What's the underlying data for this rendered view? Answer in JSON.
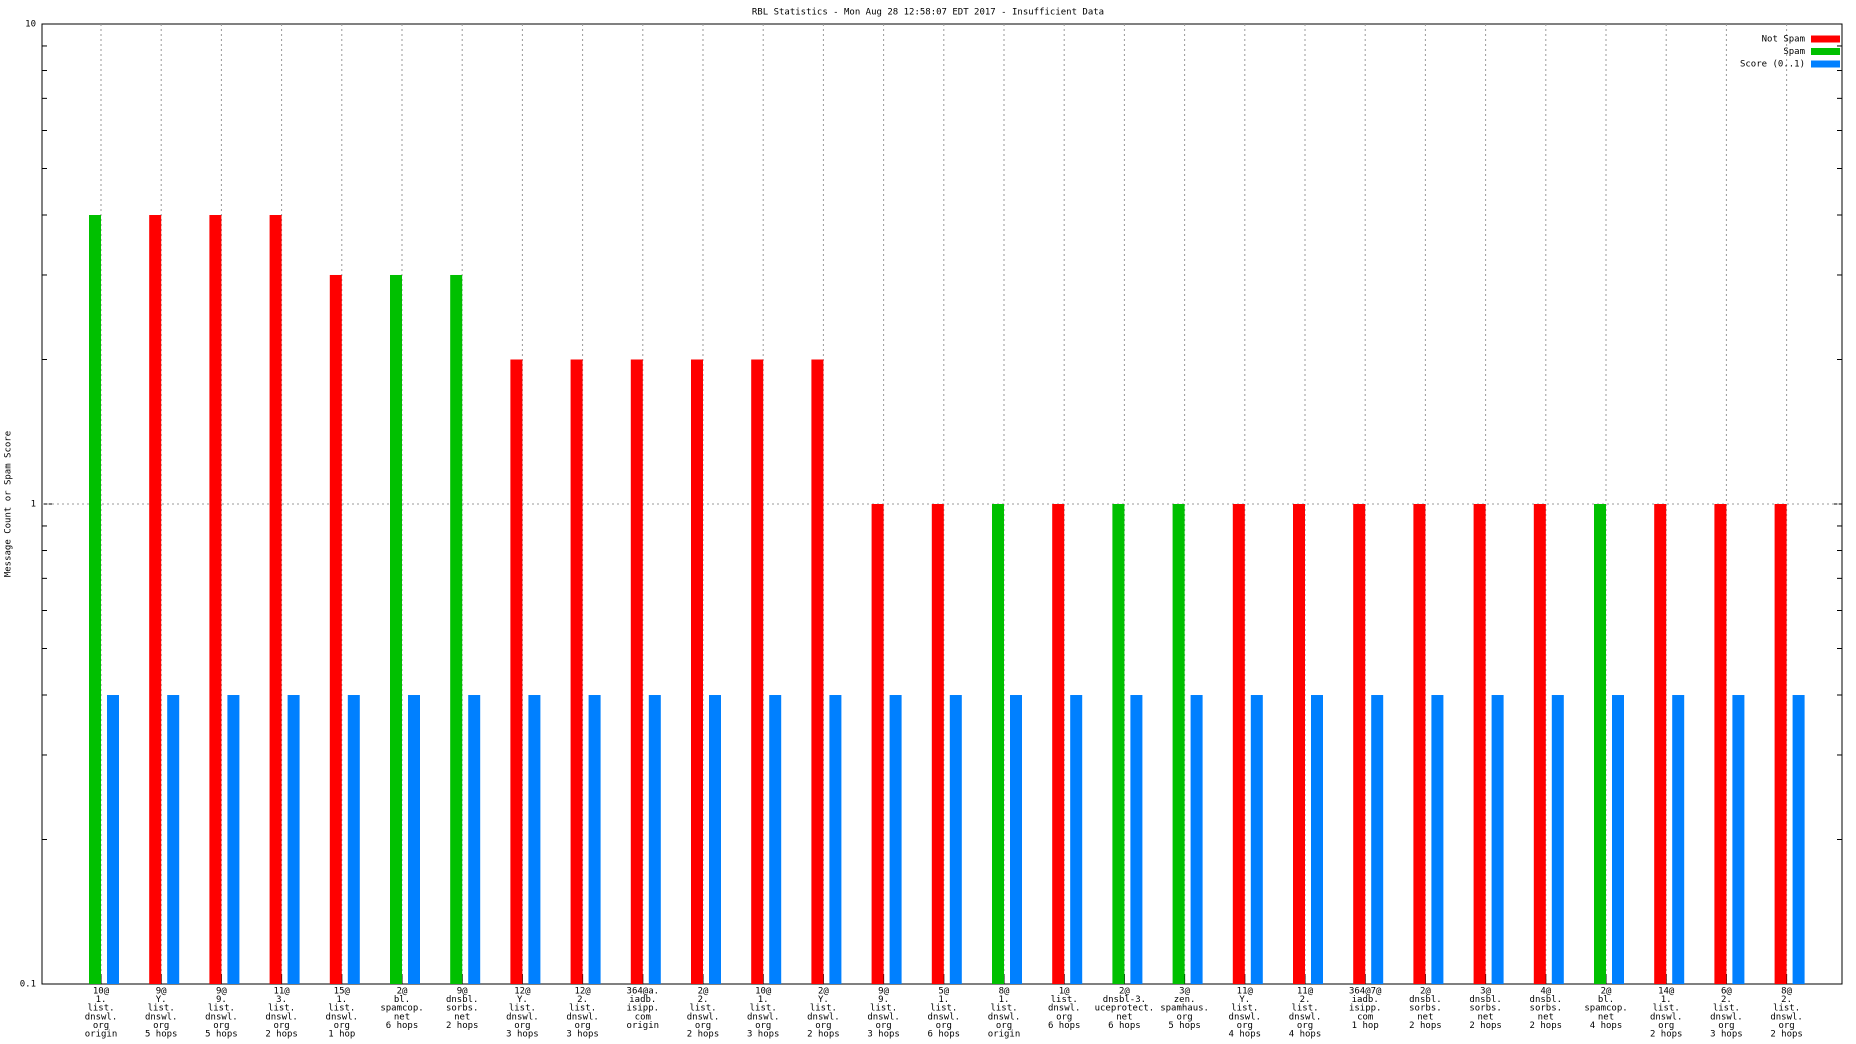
{
  "chart_data": {
    "type": "bar",
    "title": "RBL Statistics - Mon Aug 28 12:58:07 EDT 2017 - Insufficient Data",
    "y_label": "Message Count or Spam Score",
    "categories": [
      [
        "10@",
        "1.",
        "list.",
        "dnswl.",
        "org",
        "origin"
      ],
      [
        "9@",
        "Y.",
        "list.",
        "dnswl.",
        "org",
        "5 hops"
      ],
      [
        "9@",
        "9.",
        "list.",
        "dnswl.",
        "org",
        "5 hops"
      ],
      [
        "11@",
        "3.",
        "list.",
        "dnswl.",
        "org",
        "2 hops"
      ],
      [
        "15@",
        "1.",
        "list.",
        "dnswl.",
        "org",
        "1 hop"
      ],
      [
        "2@",
        "bl.",
        "spamcop.",
        "net",
        "6 hops"
      ],
      [
        "9@",
        "dnsbl.",
        "sorbs.",
        "net",
        "2 hops"
      ],
      [
        "12@",
        "Y.",
        "list.",
        "dnswl.",
        "org",
        "3 hops"
      ],
      [
        "12@",
        "2.",
        "list.",
        "dnswl.",
        "org",
        "3 hops"
      ],
      [
        "364@a.",
        "iadb.",
        "isipp.",
        "com",
        "origin"
      ],
      [
        "2@",
        "2.",
        "list.",
        "dnswl.",
        "org",
        "2 hops"
      ],
      [
        "10@",
        "1.",
        "list.",
        "dnswl.",
        "org",
        "3 hops"
      ],
      [
        "2@",
        "Y.",
        "list.",
        "dnswl.",
        "org",
        "2 hops"
      ],
      [
        "9@",
        "9.",
        "list.",
        "dnswl.",
        "org",
        "3 hops"
      ],
      [
        "5@",
        "1.",
        "list.",
        "dnswl.",
        "org",
        "6 hops"
      ],
      [
        "8@",
        "1.",
        "list.",
        "dnswl.",
        "org",
        "origin"
      ],
      [
        "1@",
        "list.",
        "dnswl.",
        "org",
        "6 hops"
      ],
      [
        "2@",
        "dnsbl-3.",
        "uceprotect.",
        "net",
        "6 hops"
      ],
      [
        "3@",
        "zen.",
        "spamhaus.",
        "org",
        "5 hops"
      ],
      [
        "11@",
        "Y.",
        "list.",
        "dnswl.",
        "org",
        "4 hops"
      ],
      [
        "11@",
        "2.",
        "list.",
        "dnswl.",
        "org",
        "4 hops"
      ],
      [
        "364@7@",
        "iadb.",
        "isipp.",
        "com",
        "1 hop"
      ],
      [
        "2@",
        "dnsbl.",
        "sorbs.",
        "net",
        "2 hops"
      ],
      [
        "3@",
        "dnsbl.",
        "sorbs.",
        "net",
        "2 hops"
      ],
      [
        "4@",
        "dnsbl.",
        "sorbs.",
        "net",
        "2 hops"
      ],
      [
        "2@",
        "bl.",
        "spamcop.",
        "net",
        "4 hops"
      ],
      [
        "14@",
        "1.",
        "list.",
        "dnswl.",
        "org",
        "2 hops"
      ],
      [
        "6@",
        "2.",
        "list.",
        "dnswl.",
        "org",
        "3 hops"
      ],
      [
        "8@",
        "2.",
        "list.",
        "dnswl.",
        "org",
        "2 hops"
      ]
    ],
    "series": [
      {
        "name": "Not Spam",
        "color": "#ff0000",
        "values": [
          null,
          4,
          4,
          4,
          3,
          null,
          null,
          2,
          2,
          2,
          2,
          2,
          2,
          1,
          1,
          null,
          1,
          null,
          null,
          1,
          1,
          1,
          1,
          1,
          1,
          null,
          1,
          1,
          1
        ]
      },
      {
        "name": "Spam",
        "color": "#00c000",
        "values": [
          4,
          null,
          null,
          null,
          null,
          3,
          3,
          null,
          null,
          null,
          null,
          null,
          null,
          null,
          null,
          1,
          null,
          1,
          1,
          null,
          null,
          null,
          null,
          null,
          null,
          1,
          null,
          null,
          null
        ]
      },
      {
        "name": "Score (0..1)",
        "color": "#0080ff",
        "values": [
          0.4,
          0.4,
          0.4,
          0.4,
          0.4,
          0.4,
          0.4,
          0.4,
          0.4,
          0.4,
          0.4,
          0.4,
          0.4,
          0.4,
          0.4,
          0.4,
          0.4,
          0.4,
          0.4,
          0.4,
          0.4,
          0.4,
          0.4,
          0.4,
          0.4,
          0.4,
          0.4,
          0.4,
          0.4
        ]
      }
    ],
    "ylog": true,
    "ylim": [
      0.1,
      10
    ],
    "yticks": [
      0.1,
      1,
      10
    ],
    "yminorticks": [
      0.2,
      0.3,
      0.4,
      0.5,
      0.6,
      0.7,
      0.8,
      0.9,
      2,
      3,
      4,
      5,
      6,
      7,
      8,
      9
    ],
    "grid": true,
    "legend": "top-right"
  }
}
